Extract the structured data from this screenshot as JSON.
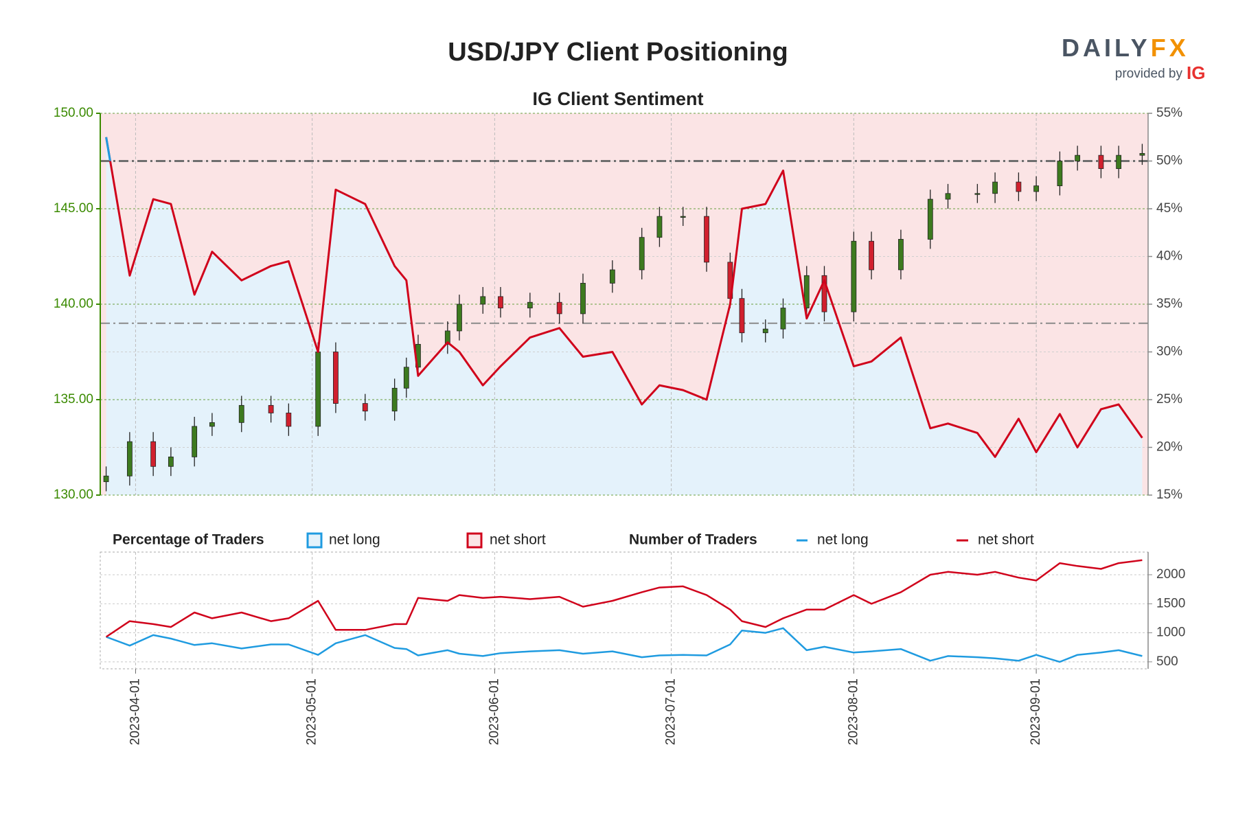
{
  "brand": {
    "name": "DAILY",
    "accent": "FX",
    "provided_by": "provided by",
    "ig": "IG"
  },
  "chart_data": [
    {
      "type": "candlestick",
      "title": "USD/JPY Client Positioning",
      "subtitle": "IG Client Sentiment",
      "x": [
        "2023-03-27",
        "2023-03-31",
        "2023-04-04",
        "2023-04-07",
        "2023-04-11",
        "2023-04-14",
        "2023-04-19",
        "2023-04-24",
        "2023-04-27",
        "2023-05-02",
        "2023-05-05",
        "2023-05-10",
        "2023-05-15",
        "2023-05-17",
        "2023-05-19",
        "2023-05-24",
        "2023-05-26",
        "2023-05-30",
        "2023-06-02",
        "2023-06-07",
        "2023-06-12",
        "2023-06-16",
        "2023-06-21",
        "2023-06-26",
        "2023-06-29",
        "2023-07-03",
        "2023-07-07",
        "2023-07-11",
        "2023-07-13",
        "2023-07-17",
        "2023-07-20",
        "2023-07-24",
        "2023-07-27",
        "2023-08-01",
        "2023-08-04",
        "2023-08-09",
        "2023-08-14",
        "2023-08-17",
        "2023-08-22",
        "2023-08-25",
        "2023-08-29",
        "2023-09-01",
        "2023-09-05",
        "2023-09-08",
        "2023-09-12",
        "2023-09-15",
        "2023-09-19"
      ],
      "open": [
        130.7,
        131.0,
        132.8,
        131.5,
        132,
        133.6,
        133.8,
        134.7,
        134.3,
        133.6,
        137.5,
        134.8,
        134.4,
        135.6,
        136.7,
        137.9,
        138.6,
        140,
        140.4,
        139.8,
        140.1,
        139.5,
        141.1,
        141.8,
        143.5,
        144.6,
        144.6,
        142.2,
        140.3,
        138.5,
        138.7,
        139.8,
        141.5,
        139.6,
        143.3,
        141.8,
        143.4,
        145.5,
        145.8,
        145.8,
        146.4,
        145.9,
        146.2,
        147.5,
        147.8,
        147.1,
        147.8
      ],
      "high": [
        131.5,
        133.3,
        133.3,
        132.5,
        134.1,
        134.3,
        135.2,
        135.2,
        134.8,
        138.0,
        138.0,
        135.3,
        136.1,
        137.2,
        138.4,
        139.1,
        140.5,
        140.9,
        140.9,
        140.6,
        140.6,
        141.6,
        142.3,
        144.0,
        145.1,
        145.1,
        145.1,
        142.7,
        140.8,
        139.2,
        140.3,
        142.0,
        142.0,
        143.8,
        143.8,
        143.9,
        146.0,
        146.3,
        146.3,
        146.9,
        146.9,
        146.7,
        148.0,
        148.3,
        148.3,
        148.3,
        148.4
      ],
      "low": [
        130.2,
        130.5,
        131.0,
        131.0,
        131.5,
        133.1,
        133.3,
        133.8,
        133.1,
        133.1,
        134.3,
        133.9,
        133.9,
        135.1,
        136.2,
        137.4,
        138.1,
        139.5,
        139.3,
        139.3,
        139.0,
        139.0,
        140.6,
        141.3,
        143.0,
        144.1,
        141.7,
        139.8,
        138.0,
        138.0,
        138.2,
        139.3,
        139.1,
        139.1,
        141.3,
        141.3,
        142.9,
        145.0,
        145.3,
        145.3,
        145.4,
        145.4,
        145.7,
        147.0,
        146.6,
        146.6,
        147.3
      ],
      "close": [
        131,
        132.8,
        131.5,
        132,
        133.6,
        133.8,
        134.7,
        134.3,
        133.6,
        137.5,
        134.8,
        134.4,
        135.6,
        136.7,
        137.9,
        138.6,
        140,
        140.4,
        139.8,
        140.1,
        139.5,
        141.1,
        141.8,
        143.5,
        144.6,
        144.6,
        142.2,
        140.3,
        138.5,
        138.7,
        139.8,
        141.5,
        139.6,
        143.3,
        141.8,
        143.4,
        145.5,
        145.8,
        145.8,
        146.4,
        145.9,
        146.2,
        147.5,
        147.8,
        147.1,
        147.8,
        147.9
      ],
      "up_color": "#3d7a1f",
      "down_color": "#d0202e",
      "xlim": [
        "2023-03-26",
        "2023-09-20"
      ],
      "xticks": [
        "2023-04-01",
        "2023-05-01",
        "2023-06-01",
        "2023-07-01",
        "2023-08-01",
        "2023-09-01"
      ],
      "ylim": [
        130,
        150
      ],
      "yticks": [
        {
          "value": 130,
          "label": "130.00"
        },
        {
          "value": 135,
          "label": "135.00"
        },
        {
          "value": 140,
          "label": "140.00"
        },
        {
          "value": 145,
          "label": "145.00"
        },
        {
          "value": 150,
          "label": "150.00"
        }
      ],
      "y_color": "#3a8a00",
      "y2lim": [
        15,
        55
      ],
      "y2ticks": [
        {
          "value": 15,
          "label": "15%"
        },
        {
          "value": 20,
          "label": "20%"
        },
        {
          "value": 25,
          "label": "25%"
        },
        {
          "value": 30,
          "label": "30%"
        },
        {
          "value": 35,
          "label": "35%"
        },
        {
          "value": 40,
          "label": "40%"
        },
        {
          "value": 45,
          "label": "45%"
        },
        {
          "value": 50,
          "label": "50%"
        },
        {
          "value": 55,
          "label": "55%"
        }
      ],
      "sentiment": {
        "axis": "y2",
        "threshold": 50,
        "line_color": "#d0021b",
        "line_color_above": "#1f9be0",
        "values": [
          52.5,
          38,
          46,
          45.5,
          36,
          40.5,
          37.5,
          39,
          39.5,
          30,
          47,
          45.5,
          39,
          37.5,
          27.5,
          31,
          30,
          26.5,
          28.5,
          31.5,
          32.5,
          29.5,
          30,
          24.5,
          26.5,
          26,
          25,
          35,
          45,
          45.5,
          49,
          33.5,
          37.5,
          28.5,
          29,
          31.5,
          22,
          22.5,
          21.5,
          19,
          23,
          19.5,
          23.5,
          20,
          24,
          24.5,
          21
        ]
      },
      "reference_lines": [
        {
          "axis": "y2",
          "value": 50,
          "color": "#6e6e6e"
        },
        {
          "axis": "y2",
          "value": 33,
          "color": "#8a8a8a"
        }
      ],
      "legend_title": "Percentage of Traders",
      "legend": [
        {
          "name": "net long",
          "color": "#1f9be0",
          "fill": "#e4f2fb"
        },
        {
          "name": "net short",
          "color": "#d0021b",
          "fill": "#fbe4e5"
        }
      ],
      "grid": true
    },
    {
      "type": "line",
      "x": [
        "2023-03-27",
        "2023-03-31",
        "2023-04-04",
        "2023-04-07",
        "2023-04-11",
        "2023-04-14",
        "2023-04-19",
        "2023-04-24",
        "2023-04-27",
        "2023-05-02",
        "2023-05-05",
        "2023-05-10",
        "2023-05-15",
        "2023-05-17",
        "2023-05-19",
        "2023-05-24",
        "2023-05-26",
        "2023-05-30",
        "2023-06-02",
        "2023-06-07",
        "2023-06-12",
        "2023-06-16",
        "2023-06-21",
        "2023-06-26",
        "2023-06-29",
        "2023-07-03",
        "2023-07-07",
        "2023-07-11",
        "2023-07-13",
        "2023-07-17",
        "2023-07-20",
        "2023-07-24",
        "2023-07-27",
        "2023-08-01",
        "2023-08-04",
        "2023-08-09",
        "2023-08-14",
        "2023-08-17",
        "2023-08-22",
        "2023-08-25",
        "2023-08-29",
        "2023-09-01",
        "2023-09-05",
        "2023-09-08",
        "2023-09-12",
        "2023-09-15",
        "2023-09-19"
      ],
      "xlim": [
        "2023-03-26",
        "2023-09-20"
      ],
      "xticks": [
        "2023-04-01",
        "2023-05-01",
        "2023-06-01",
        "2023-07-01",
        "2023-08-01",
        "2023-09-01"
      ],
      "ylim": [
        380,
        2390
      ],
      "yticks": [
        500,
        1000,
        1500,
        2000
      ],
      "legend_title": "Number of Traders",
      "series": [
        {
          "name": "net long",
          "color": "#1f9be0",
          "values": [
            930,
            780,
            960,
            900,
            790,
            820,
            730,
            800,
            800,
            620,
            820,
            960,
            740,
            720,
            610,
            700,
            640,
            600,
            650,
            680,
            700,
            640,
            680,
            580,
            610,
            620,
            610,
            800,
            1040,
            1000,
            1080,
            700,
            760,
            660,
            680,
            720,
            520,
            600,
            580,
            560,
            520,
            620,
            500,
            620,
            660,
            700,
            600
          ]
        },
        {
          "name": "net short",
          "color": "#d0021b",
          "values": [
            930,
            1200,
            1150,
            1100,
            1350,
            1250,
            1350,
            1200,
            1250,
            1550,
            1050,
            1050,
            1150,
            1150,
            1600,
            1550,
            1650,
            1600,
            1620,
            1580,
            1620,
            1450,
            1550,
            1700,
            1780,
            1800,
            1650,
            1400,
            1200,
            1100,
            1250,
            1400,
            1400,
            1650,
            1500,
            1700,
            2000,
            2050,
            2000,
            2050,
            1950,
            1900,
            2200,
            2150,
            2100,
            2200,
            2250
          ]
        }
      ],
      "grid": true
    }
  ]
}
